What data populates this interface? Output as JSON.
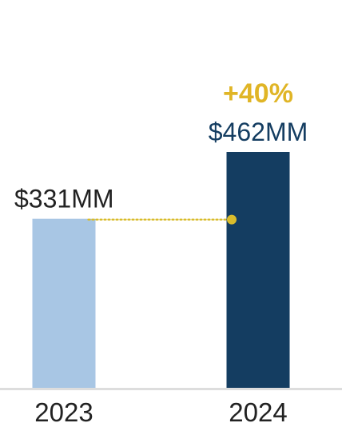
{
  "chart_data": {
    "type": "bar",
    "categories": [
      "2023",
      "2024"
    ],
    "values": [
      331,
      462
    ],
    "value_labels": [
      "$331MM",
      "$462MM"
    ],
    "annotation": "+40%",
    "ylim": [
      0,
      500
    ],
    "grid": false,
    "legend": "none",
    "colors": {
      "bar_2023": "#a8c6e4",
      "bar_2024": "#143d61",
      "label_2023": "#222222",
      "label_2024": "#143d61",
      "annotation": "#e0b526",
      "connector": "#d9bc2c",
      "baseline": "#dddddd"
    }
  }
}
